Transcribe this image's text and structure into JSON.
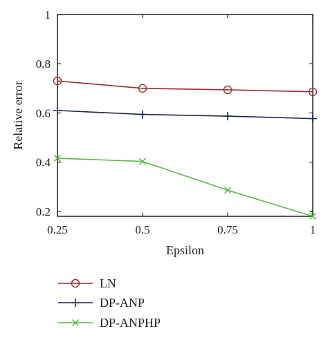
{
  "chart_data": {
    "type": "line",
    "title": "",
    "xlabel": "Epsilon",
    "ylabel": "Relative error",
    "x": [
      0.25,
      0.5,
      0.75,
      1
    ],
    "xticks": [
      "0.25",
      "0.5",
      "0.75",
      "1"
    ],
    "yticks": [
      "0.2",
      "0.4",
      "0.6",
      "0.8",
      "1"
    ],
    "xlim": [
      0.25,
      1
    ],
    "ylim": [
      0.18,
      1
    ],
    "grid": false,
    "legend_position": "below",
    "series": [
      {
        "name": "LN",
        "values": [
          0.73,
          0.7,
          0.694,
          0.686
        ],
        "color": "#9b2d2a",
        "marker": "circle"
      },
      {
        "name": "DP-ANP",
        "values": [
          0.61,
          0.594,
          0.587,
          0.577
        ],
        "color": "#1c2450",
        "marker": "plus"
      },
      {
        "name": "DP-ANPHP",
        "values": [
          0.416,
          0.403,
          0.286,
          0.18
        ],
        "color": "#5ab84a",
        "marker": "x"
      }
    ]
  }
}
